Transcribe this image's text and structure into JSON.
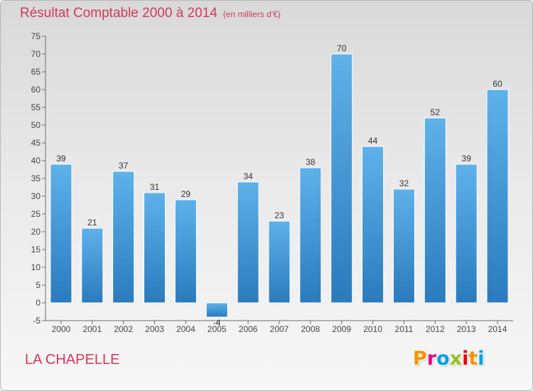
{
  "header": {
    "title": "Résultat Comptable 2000 à 2014",
    "subtitle": "(en milliers d'€)"
  },
  "footer": {
    "commune": "LA CHAPELLE",
    "brand": "Proxiti",
    "brand_colors": [
      "#f29400",
      "#e5007d",
      "#009fe3",
      "#95c11f",
      "#e30613",
      "#f29400",
      "#009fe3"
    ]
  },
  "colors": {
    "title": "#d23a5c",
    "bar_top": "#5fb1ea",
    "bar_bottom": "#2a7bbd",
    "axis": "#6e6e6e"
  },
  "chart_data": {
    "type": "bar",
    "title": "Résultat Comptable 2000 à 2014",
    "subtitle": "(en milliers d'€)",
    "categories": [
      "2000",
      "2001",
      "2002",
      "2003",
      "2004",
      "2005",
      "2006",
      "2007",
      "2008",
      "2009",
      "2010",
      "2011",
      "2012",
      "2013",
      "2014"
    ],
    "values": [
      39,
      21,
      37,
      31,
      29,
      -4,
      34,
      23,
      38,
      70,
      44,
      32,
      52,
      39,
      60
    ],
    "data_labels": [
      "39",
      "21",
      "37",
      "31",
      "29",
      "-4",
      "34",
      "23",
      "38",
      "70",
      "44",
      "32",
      "52",
      "39",
      "60"
    ],
    "ylim": [
      -5,
      75
    ],
    "yticks": [
      -5,
      0,
      5,
      10,
      15,
      20,
      25,
      30,
      35,
      40,
      45,
      50,
      55,
      60,
      65,
      70,
      75
    ],
    "grid": false,
    "legend": "none"
  }
}
